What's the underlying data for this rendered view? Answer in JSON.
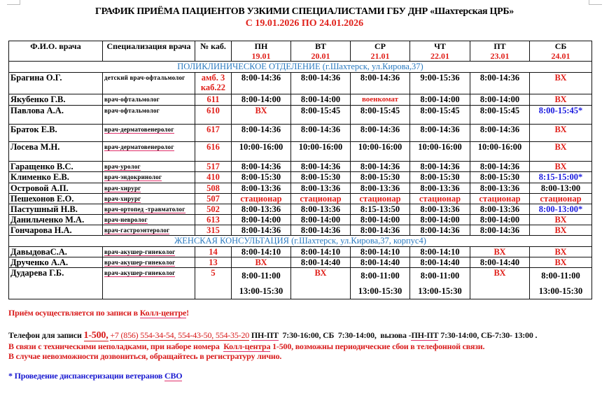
{
  "title": "ГРАФИК ПРИЁМА ПАЦИЕНТОВ УЗКИМИ СПЕЦИАЛИСТАМИ ГБУ ДНР «Шахтерская ЦРБ»",
  "subtitle": "С 19.01.2026 ПО 24.01.2026",
  "colors": {
    "accent_red": "#e0201a",
    "section_blue": "#2a7ac0",
    "star_blue": "#1a1adf"
  },
  "headers": {
    "name": "Ф.И.О. врача",
    "spec": "Специализация врача",
    "cab": "№ каб.",
    "days": [
      {
        "day": "ПН",
        "date": "19.01"
      },
      {
        "day": "ВТ",
        "date": "20.01"
      },
      {
        "day": "СР",
        "date": "21.01"
      },
      {
        "day": "ЧТ",
        "date": "22.01"
      },
      {
        "day": "ПТ",
        "date": "23.01"
      },
      {
        "day": "СБ",
        "date": "24.01"
      }
    ]
  },
  "sections": [
    {
      "title": "ПОЛИКЛИНИЧЕСКОЕ ОТДЕЛЕНИЕ (г.Шахтерск, ул.Кирова,37)",
      "rows": [
        {
          "name": "Брагина О.Г.",
          "spec": "детский врач-офтальмолог",
          "cab": "амб. 3\nкаб.22",
          "days": [
            "8:00-14:36",
            "8:00-14:36",
            "8:00-14:36",
            "9:00-15:36",
            "8:00-14:36",
            "ВХ"
          ]
        },
        {
          "name": "Якубенко Г.В.",
          "spec": "врач-офтальмолог",
          "cab": "611",
          "days": [
            "8:00-14:00",
            "8:00-14:00",
            "военкомат",
            "8:00-14:00",
            "8:00-14:00",
            "ВХ"
          ]
        },
        {
          "name": "Павлова А.А.",
          "spec": "врач-офтальмолог",
          "cab": "610",
          "days": [
            "ВХ",
            "8:00-15:45",
            "8:00-15:45",
            "8:00-15:45",
            "8:00-15:45",
            "8:00-15:45*"
          ]
        },
        {
          "name": "Браток Е.В.",
          "spec": "врач-дерматовенеролог",
          "cab": "617",
          "days": [
            "8:00-14:36",
            "8:00-14:36",
            "8:00-14:36",
            "8:00-14:36",
            "8:00-14:36",
            "ВХ"
          ]
        },
        {
          "name": "Лосева М.Н.",
          "spec": "врач-дерматовенеролог",
          "cab": "616",
          "days": [
            "10:00-16:00",
            "10:00-16:00",
            "10:00-16:00",
            "10:00-16:00",
            "10:00-16:00",
            "ВХ"
          ]
        },
        {
          "name": "Гаращенко В.С.",
          "spec": "врач-уролог",
          "cab": "517",
          "days": [
            "8:00-14:36",
            "8:00-14:36",
            "8:00-14:36",
            "8:00-14:36",
            "8:00-14:36",
            "ВХ"
          ]
        },
        {
          "name": "Клименко Е.В.",
          "spec": "врач-эндокринолог",
          "cab": "410",
          "days": [
            "8:00-15:30",
            "8:00-15:30",
            "8:00-15:30",
            "8:00-15:30",
            "8:00-15:30",
            "8:15-15:00*"
          ]
        },
        {
          "name": "Островой А.П.",
          "spec": "врач-хирург",
          "cab": "508",
          "days": [
            "8:00-13:36",
            "8:00-13:36",
            "8:00-13:36",
            "8:00-13:36",
            "8:00-13:36",
            "8:00-13:00"
          ]
        },
        {
          "name": "Пешехонов Е.О.",
          "spec": "врач-хирург",
          "cab": "507",
          "days": [
            "стационар",
            "стационар",
            "стационар",
            "стационар",
            "стационар",
            "стационар"
          ]
        },
        {
          "name": "Пастушный Н.В.",
          "spec": "врач-ортопед -травматолог",
          "cab": "502",
          "days": [
            "8:00-13:36",
            "8:00-13:36",
            "8:15-13:50",
            "8:00-13:36",
            "8:00-13:36",
            "8:00-13:00*"
          ]
        },
        {
          "name": "Данильченко М.А.",
          "spec": "врач-невролог",
          "cab": "613",
          "days": [
            "8:00-14:00",
            "8:00-14:00",
            "8:00-14:00",
            "8:00-14:00",
            "8:00-14:00",
            "ВХ"
          ]
        },
        {
          "name": "Гончарова Н.А.",
          "spec": "врач-гастроэнтеролог",
          "cab": "315",
          "days": [
            "8:00-14:36",
            "8:00-14:36",
            "8:00-14:36",
            "8:00-14:36",
            "8:00-14:36",
            "ВХ"
          ]
        }
      ]
    },
    {
      "title": "ЖЕНСКАЯ КОНСУЛЬТАЦИЯ (г.Шахтерск, ул.Кирова,37, корпус4)",
      "rows": [
        {
          "name": "ДавыдоваС.А.",
          "spec": "врач-акушер-гинеколог",
          "cab": "14",
          "days": [
            "8:00-14:10",
            "8:00-14:10",
            "8:00-14:10",
            "8:00-14:10",
            "ВХ",
            "ВХ"
          ]
        },
        {
          "name": "Друченко А.А.",
          "spec": "врач-акушер-гинеколог",
          "cab": "13",
          "days": [
            "ВХ",
            "8:00-14:40",
            "8:00-14:40",
            "8:00-14:40",
            "8:00-14:40",
            "ВХ"
          ]
        },
        {
          "name": "Дударева Г.Б.",
          "spec": "врач-акушер-гинеколог",
          "cab": "5",
          "days": [
            "8:00-11:00\n13:00-15:30",
            "ВХ",
            "8:00-11:00\n13:00-15:30",
            "8:00-11:00\n13:00-15:30",
            "ВХ",
            "8:00-11:00\n13:00-15:30"
          ]
        }
      ]
    }
  ],
  "notes": {
    "appointment": {
      "text": "Приём осуществляется по записи в ",
      "link": "Колл-центре",
      "end": "!"
    },
    "phone": {
      "label": "Телефон для записи ",
      "short": "1-500,",
      "numbers": "+7 (856) 554-34-54, 554-43-50, 554-35-20",
      "days1": "ПН-ПТ",
      "hours1": "  7:30-16:00, СБ  7:30-14:00,  вызова -",
      "days2": "ПН-ПТ",
      "hours2": " 7:30-14:00, СБ-7:30- 13:00 ."
    },
    "issues": {
      "pre": "В связи с техническими неполадками, при наборе номера  ",
      "link": "Колл-центра",
      "post": " 1-500, возможны периодические сбои в телефонной связи."
    },
    "fallback": "В случае невозможности дозвониться, обращайтесь в регистратуру лично.",
    "veterans": {
      "pre": "* Проведение диспансеризации ветеранов ",
      "link": "СВО"
    }
  }
}
